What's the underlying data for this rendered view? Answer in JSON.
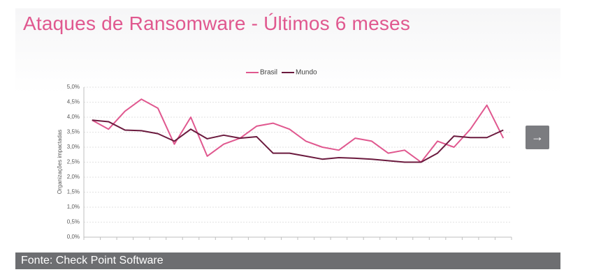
{
  "title": "Ataques de Ransomware - Últimos 6 meses",
  "source": "Fonte: Check Point Software",
  "chart_data": {
    "type": "line",
    "y_label": "Organizações impactadas",
    "categories": [
      null,
      null,
      null,
      null,
      null,
      null,
      null,
      null,
      null,
      null,
      null,
      null,
      null,
      null,
      null,
      null,
      null,
      null,
      null,
      null,
      null,
      null,
      null,
      null,
      null,
      null
    ],
    "series": [
      {
        "name": "Brasil",
        "color": "#e0588f",
        "values": [
          3.9,
          3.6,
          4.2,
          4.6,
          4.3,
          3.1,
          4.0,
          2.7,
          3.1,
          3.3,
          3.7,
          3.8,
          3.6,
          3.2,
          3.0,
          2.9,
          3.3,
          3.2,
          2.8,
          2.9,
          2.5,
          3.2,
          3.0,
          3.6,
          4.4,
          3.3
        ]
      },
      {
        "name": "Mundo",
        "color": "#6b1a3e",
        "values": [
          3.9,
          3.85,
          3.57,
          3.55,
          3.45,
          3.2,
          3.6,
          3.28,
          3.4,
          3.3,
          3.35,
          2.8,
          2.8,
          2.7,
          2.6,
          2.65,
          2.63,
          2.6,
          2.55,
          2.5,
          2.5,
          2.8,
          3.37,
          3.32,
          3.32,
          3.57
        ]
      }
    ],
    "ylim": [
      0,
      5
    ],
    "yticks": [
      {
        "value": 0,
        "label": "0,0%"
      },
      {
        "value": 0.5,
        "label": "0,5%"
      },
      {
        "value": 1,
        "label": "1,0%"
      },
      {
        "value": 1.5,
        "label": "1,5%"
      },
      {
        "value": 2,
        "label": "2,0%"
      },
      {
        "value": 2.5,
        "label": "2,5%"
      },
      {
        "value": 3,
        "label": "3,0%"
      },
      {
        "value": 3.5,
        "label": "3,5%"
      },
      {
        "value": 4,
        "label": "4,0%"
      },
      {
        "value": 4.5,
        "label": "4,5%"
      },
      {
        "value": 5,
        "label": "5,0%"
      }
    ],
    "grid": true,
    "legend": "top"
  }
}
